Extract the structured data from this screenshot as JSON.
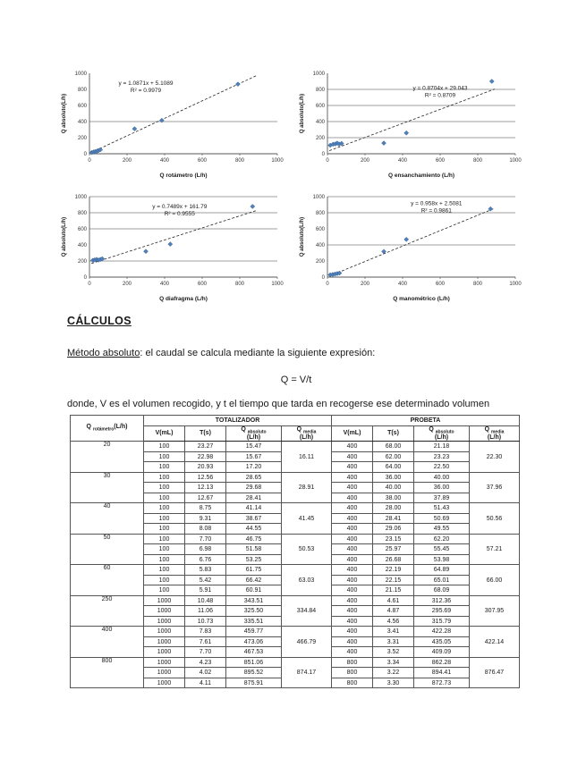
{
  "document": {
    "heading": "CÁLCULOS",
    "method_label": "Método absoluto",
    "method_text": ": el caudal se calcula mediante la siguiente expresión:",
    "formula": "Q = V/t",
    "where_text": "donde, V es el volumen recogido, y t el tiempo que tarda en recogerse ese determinado volumen"
  },
  "chart_data": [
    {
      "type": "scatter",
      "name": "rotametro",
      "xlabel": "Q rotámetro (L/h)",
      "ylabel": "Q absoluto(L/h)",
      "equation": "y = 1.0871x + 5.1089",
      "r2": "R² = 0.9979",
      "trend": {
        "slope": 1.0871,
        "intercept": 5.1089
      },
      "points": [
        [
          12,
          15
        ],
        [
          22,
          22
        ],
        [
          30,
          27
        ],
        [
          40,
          33
        ],
        [
          48,
          40
        ],
        [
          58,
          50
        ],
        [
          240,
          310
        ],
        [
          385,
          415
        ],
        [
          790,
          865
        ]
      ],
      "xlim": [
        0,
        1000
      ],
      "ylim": [
        0,
        1000
      ],
      "xticks": [
        0,
        200,
        400,
        600,
        800,
        1000
      ],
      "yticks": [
        0,
        200,
        400,
        600,
        800,
        1000
      ],
      "gridlines": [
        400
      ],
      "eq_pos": [
        0.3,
        0.08
      ],
      "point_color": "#4f81bd"
    },
    {
      "type": "scatter",
      "name": "ensanchamiento",
      "xlabel": "Q ensanchamiento (L/h)",
      "ylabel": "Q absoluto(L/h)",
      "equation": "y = 0.8704x + 29.043",
      "r2": "R² = 0.8709",
      "trend": {
        "slope": 0.8704,
        "intercept": 29.043
      },
      "points": [
        [
          15,
          105
        ],
        [
          30,
          118
        ],
        [
          42,
          122
        ],
        [
          52,
          132
        ],
        [
          62,
          120
        ],
        [
          75,
          128
        ],
        [
          300,
          132
        ],
        [
          420,
          258
        ],
        [
          875,
          900
        ]
      ],
      "xlim": [
        0,
        1000
      ],
      "ylim": [
        0,
        1000
      ],
      "xticks": [
        0,
        200,
        400,
        600,
        800,
        1000
      ],
      "yticks": [
        0,
        200,
        400,
        600,
        800,
        1000
      ],
      "gridlines": [
        200,
        400,
        600,
        800
      ],
      "eq_pos": [
        0.6,
        0.14
      ],
      "point_color": "#4f81bd"
    },
    {
      "type": "scatter",
      "name": "diafragma",
      "xlabel": "Q diafragma (L/h)",
      "ylabel": "Q absoluto(L/h)",
      "equation": "y = 0.7489x + 161.79",
      "r2": "R² = 0.9555",
      "trend": {
        "slope": 0.7489,
        "intercept": 161.79
      },
      "points": [
        [
          18,
          208
        ],
        [
          28,
          214
        ],
        [
          38,
          220
        ],
        [
          48,
          212
        ],
        [
          58,
          220
        ],
        [
          68,
          228
        ],
        [
          300,
          320
        ],
        [
          430,
          410
        ],
        [
          868,
          878
        ]
      ],
      "xlim": [
        0,
        1000
      ],
      "ylim": [
        0,
        1000
      ],
      "xticks": [
        0,
        200,
        400,
        600,
        800,
        1000
      ],
      "yticks": [
        0,
        200,
        400,
        600,
        800,
        1000
      ],
      "gridlines": [
        200,
        600,
        800,
        1000
      ],
      "eq_pos": [
        0.48,
        0.08
      ],
      "point_color": "#4f81bd"
    },
    {
      "type": "scatter",
      "name": "manometrico",
      "xlabel": "Q manométrico (L/h)",
      "ylabel": "Q absoluto(L/h)",
      "equation": "y = 0.958x + 2.5081",
      "r2": "R² = 0.9861",
      "trend": {
        "slope": 0.958,
        "intercept": 2.5081
      },
      "points": [
        [
          15,
          28
        ],
        [
          28,
          33
        ],
        [
          40,
          38
        ],
        [
          52,
          44
        ],
        [
          64,
          50
        ],
        [
          300,
          318
        ],
        [
          420,
          468
        ],
        [
          868,
          848
        ]
      ],
      "xlim": [
        0,
        1000
      ],
      "ylim": [
        0,
        1000
      ],
      "xticks": [
        0,
        200,
        400,
        600,
        800,
        1000
      ],
      "yticks": [
        0,
        200,
        400,
        600,
        800,
        1000
      ],
      "gridlines": [
        400,
        800,
        1000
      ],
      "eq_pos": [
        0.58,
        0.04
      ],
      "point_color": "#4f81bd"
    }
  ],
  "table": {
    "groups": [
      "TOTALIZADOR",
      "PROBETA"
    ],
    "headers": {
      "q_rot": {
        "pre": "Q ",
        "sub": "rotámetro",
        "post": "(L/h)"
      },
      "v": "V(mL)",
      "t": "T(s)",
      "q_abs": {
        "pre": "Q ",
        "sub": "absoluto",
        "line2": "(L/h)"
      },
      "q_media": {
        "pre": "Q ",
        "sub": "media",
        "line2": "(L/h)"
      }
    },
    "rows": [
      {
        "q": "20",
        "tot": [
          [
            "100",
            "23.27",
            "15.47"
          ],
          [
            "100",
            "22.98",
            "15.67"
          ],
          [
            "100",
            "20.93",
            "17.20"
          ]
        ],
        "tmedia": "16.11",
        "pro": [
          [
            "400",
            "68.00",
            "21.18"
          ],
          [
            "400",
            "62.00",
            "23.23"
          ],
          [
            "400",
            "64.00",
            "22.50"
          ]
        ],
        "pmedia": "22.30"
      },
      {
        "q": "30",
        "tot": [
          [
            "100",
            "12.56",
            "28.65"
          ],
          [
            "100",
            "12.13",
            "29.68"
          ],
          [
            "100",
            "12.67",
            "28.41"
          ]
        ],
        "tmedia": "28.91",
        "pro": [
          [
            "400",
            "36.00",
            "40.00"
          ],
          [
            "400",
            "40.00",
            "36.00"
          ],
          [
            "400",
            "38.00",
            "37.89"
          ]
        ],
        "pmedia": "37.96"
      },
      {
        "q": "40",
        "tot": [
          [
            "100",
            "8.75",
            "41.14"
          ],
          [
            "100",
            "9.31",
            "38.67"
          ],
          [
            "100",
            "8.08",
            "44.55"
          ]
        ],
        "tmedia": "41.45",
        "pro": [
          [
            "400",
            "28.00",
            "51.43"
          ],
          [
            "400",
            "28.41",
            "50.69"
          ],
          [
            "400",
            "29.06",
            "49.55"
          ]
        ],
        "pmedia": "50.56"
      },
      {
        "q": "50",
        "tot": [
          [
            "100",
            "7.70",
            "46.75"
          ],
          [
            "100",
            "6.98",
            "51.58"
          ],
          [
            "100",
            "6.76",
            "53.25"
          ]
        ],
        "tmedia": "50.53",
        "pro": [
          [
            "400",
            "23.15",
            "62.20"
          ],
          [
            "400",
            "25.97",
            "55.45"
          ],
          [
            "400",
            "26.68",
            "53.98"
          ]
        ],
        "pmedia": "57.21"
      },
      {
        "q": "60",
        "tot": [
          [
            "100",
            "5.83",
            "61.75"
          ],
          [
            "100",
            "5.42",
            "66.42"
          ],
          [
            "100",
            "5.91",
            "60.91"
          ]
        ],
        "tmedia": "63.03",
        "pro": [
          [
            "400",
            "22.19",
            "64.89"
          ],
          [
            "400",
            "22.15",
            "65.01"
          ],
          [
            "400",
            "21.15",
            "68.09"
          ]
        ],
        "pmedia": "66.00"
      },
      {
        "q": "250",
        "tot": [
          [
            "1000",
            "10.48",
            "343.51"
          ],
          [
            "1000",
            "11.06",
            "325.50"
          ],
          [
            "1000",
            "10.73",
            "335.51"
          ]
        ],
        "tmedia": "334.84",
        "pro": [
          [
            "400",
            "4.61",
            "312.36"
          ],
          [
            "400",
            "4.87",
            "295.69"
          ],
          [
            "400",
            "4.56",
            "315.79"
          ]
        ],
        "pmedia": "307.95"
      },
      {
        "q": "400",
        "tot": [
          [
            "1000",
            "7.83",
            "459.77"
          ],
          [
            "1000",
            "7.61",
            "473.06"
          ],
          [
            "1000",
            "7.70",
            "467.53"
          ]
        ],
        "tmedia": "466.79",
        "pro": [
          [
            "400",
            "3.41",
            "422.28"
          ],
          [
            "400",
            "3.31",
            "435.05"
          ],
          [
            "400",
            "3.52",
            "409.09"
          ]
        ],
        "pmedia": "422.14"
      },
      {
        "q": "800",
        "tot": [
          [
            "1000",
            "4.23",
            "851.06"
          ],
          [
            "1000",
            "4.02",
            "895.52"
          ],
          [
            "1000",
            "4.11",
            "875.91"
          ]
        ],
        "tmedia": "874.17",
        "pro": [
          [
            "800",
            "3.34",
            "862.28"
          ],
          [
            "800",
            "3.22",
            "894.41"
          ],
          [
            "800",
            "3.30",
            "872.73"
          ]
        ],
        "pmedia": "876.47"
      }
    ]
  }
}
